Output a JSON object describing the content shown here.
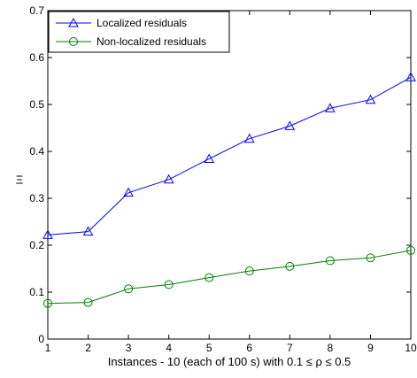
{
  "chart_data": {
    "type": "line",
    "x": [
      1,
      2,
      3,
      4,
      5,
      6,
      7,
      8,
      9,
      10
    ],
    "series": [
      {
        "name": "Localized residuals",
        "color": "#0000ff",
        "marker": "triangle",
        "values": [
          0.222,
          0.229,
          0.312,
          0.34,
          0.384,
          0.427,
          0.454,
          0.492,
          0.51,
          0.558
        ]
      },
      {
        "name": "Non-localized residuals",
        "color": "#008000",
        "marker": "circle",
        "values": [
          0.076,
          0.078,
          0.107,
          0.116,
          0.131,
          0.145,
          0.155,
          0.167,
          0.173,
          0.189
        ]
      }
    ],
    "xlabel": "Instances - 10 (each of 100 s) with 0.1 ≤ ρ ≤ 0.5",
    "ylabel": "Ξ",
    "xlim": [
      1,
      10
    ],
    "ylim": [
      0,
      0.7
    ],
    "xticks": [
      "1",
      "2",
      "3",
      "4",
      "5",
      "6",
      "7",
      "8",
      "9",
      "10"
    ],
    "yticks": [
      "0",
      "0.1",
      "0.2",
      "0.3",
      "0.4",
      "0.5",
      "0.6",
      "0.7"
    ],
    "grid": false,
    "legend_position": "top-left"
  }
}
